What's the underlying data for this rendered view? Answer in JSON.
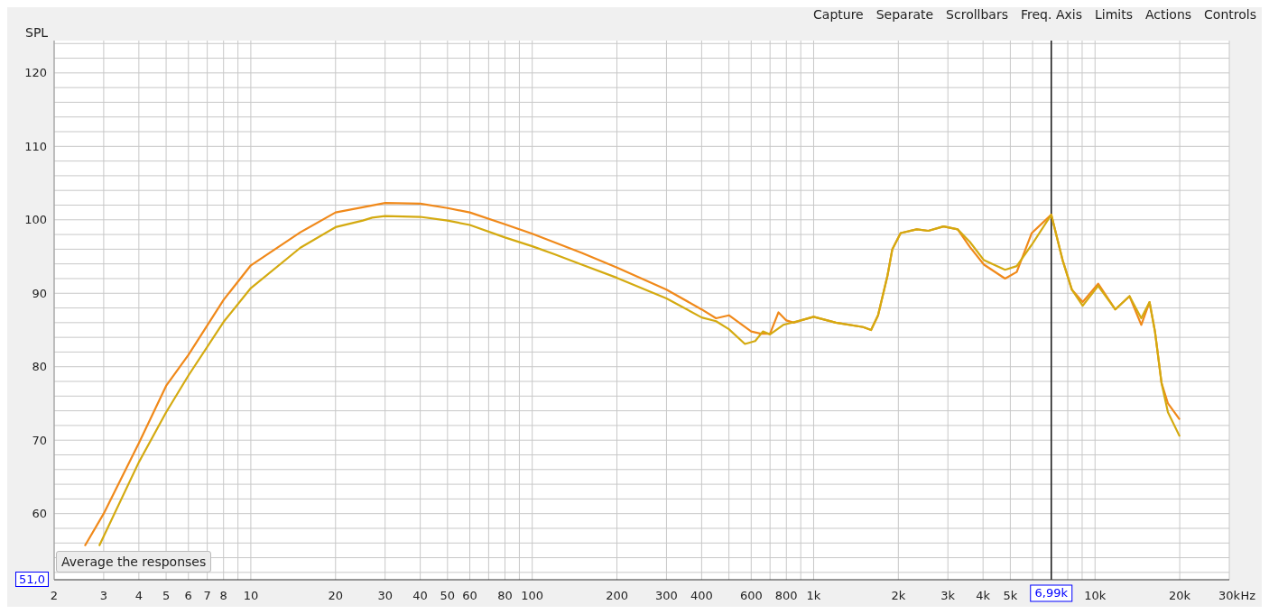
{
  "chart_data": {
    "type": "line",
    "ylabel": "SPL",
    "xlabel": "Hz",
    "annotations": [
      "Capture",
      "Separate",
      "Scrollbars",
      "Freq. Axis",
      "Limits",
      "Actions",
      "Controls",
      "Average the responses",
      "51,0"
    ],
    "xlim": [
      2,
      30000
    ],
    "ylim": [
      51,
      124.4
    ],
    "log": "x",
    "grid": true,
    "line_style": "solid",
    "marker": "none",
    "xticks": [
      2,
      3,
      4,
      5,
      6,
      7,
      8,
      {
        "value": 9,
        "label": null
      },
      10,
      20,
      30,
      40,
      50,
      60,
      {
        "value": 70,
        "label": null
      },
      80,
      {
        "value": 90,
        "label": null
      },
      100,
      200,
      300,
      400,
      {
        "value": 500,
        "label": null
      },
      600,
      {
        "value": 700,
        "label": null
      },
      800,
      {
        "value": 900,
        "label": null
      },
      {
        "value": 1000,
        "label": "1k"
      },
      {
        "value": 2000,
        "label": "2k"
      },
      {
        "value": 3000,
        "label": "3k"
      },
      {
        "value": 4000,
        "label": "4k"
      },
      {
        "value": 5000,
        "label": "5k"
      },
      {
        "value": 6000,
        "label": null
      },
      {
        "value": 7000,
        "label": null
      },
      {
        "value": 8000,
        "label": null
      },
      {
        "value": 9000,
        "label": null
      },
      {
        "value": 10000,
        "label": "10k"
      },
      {
        "value": 20000,
        "label": "20k"
      },
      {
        "value": 30000,
        "label": "30k"
      }
    ],
    "yticks": [
      {
        "value": 52,
        "label": null
      },
      {
        "value": 54,
        "label": null
      },
      {
        "value": 56,
        "label": null
      },
      {
        "value": 58,
        "label": null
      },
      60,
      {
        "value": 62,
        "label": null
      },
      {
        "value": 64,
        "label": null
      },
      {
        "value": 66,
        "label": null
      },
      {
        "value": 68,
        "label": null
      },
      70,
      {
        "value": 72,
        "label": null
      },
      {
        "value": 74,
        "label": null
      },
      {
        "value": 76,
        "label": null
      },
      {
        "value": 78,
        "label": null
      },
      80,
      {
        "value": 82,
        "label": null
      },
      {
        "value": 84,
        "label": null
      },
      {
        "value": 86,
        "label": null
      },
      {
        "value": 88,
        "label": null
      },
      90,
      {
        "value": 92,
        "label": null
      },
      {
        "value": 94,
        "label": null
      },
      {
        "value": 96,
        "label": null
      },
      {
        "value": 98,
        "label": null
      },
      100,
      {
        "value": 102,
        "label": null
      },
      {
        "value": 104,
        "label": null
      },
      {
        "value": 106,
        "label": null
      },
      {
        "value": 108,
        "label": null
      },
      110,
      {
        "value": 112,
        "label": null
      },
      {
        "value": 114,
        "label": null
      },
      {
        "value": 116,
        "label": null
      },
      {
        "value": 118,
        "label": null
      },
      120,
      {
        "value": 122,
        "label": null
      },
      {
        "value": 124,
        "label": null
      }
    ],
    "ref_lines": [
      {
        "axis": "x",
        "value": 6990,
        "label": "6,99k",
        "color": "#1a1a1a"
      }
    ],
    "series": [
      {
        "color": "#f0891a",
        "x": [
          2.57,
          3,
          4,
          5,
          6,
          8,
          10,
          15,
          20,
          30,
          40,
          50,
          60,
          80,
          100,
          150,
          200,
          300,
          400,
          450,
          500,
          600,
          650,
          700,
          750,
          800,
          850,
          900,
          1000,
          1200,
          1500,
          1600,
          1694,
          1830,
          1904,
          2038,
          2325,
          2556,
          2895,
          3250,
          3590,
          4030,
          4790,
          5270,
          5960,
          6990,
          7670,
          8270,
          9040,
          10260,
          11800,
          13260,
          14600,
          15620,
          16330,
          17230,
          18160,
          20000
        ],
        "values": [
          55.6,
          60,
          69.6,
          77.4,
          81.6,
          89.1,
          93.8,
          98.3,
          101.0,
          102.3,
          102.2,
          101.6,
          101.0,
          99.4,
          98.1,
          95.5,
          93.5,
          90.5,
          87.8,
          86.6,
          87.0,
          84.8,
          84.5,
          84.5,
          87.4,
          86.3,
          86.0,
          86.3,
          86.8,
          86.0,
          85.4,
          85.0,
          87.0,
          92.4,
          96.0,
          98.2,
          98.7,
          98.5,
          99.1,
          98.7,
          96.3,
          93.9,
          92.0,
          92.9,
          98.2,
          100.7,
          94.5,
          90.5,
          88.8,
          91.3,
          87.8,
          89.6,
          85.7,
          88.8,
          84.8,
          77.8,
          75.0,
          72.8
        ]
      },
      {
        "color": "#d4aa10",
        "x": [
          2.89,
          4,
          5,
          6,
          8,
          10,
          15,
          20,
          25,
          27,
          30,
          40,
          50,
          60,
          80,
          100,
          120,
          150,
          200,
          300,
          400,
          450,
          500,
          570,
          620,
          660,
          700,
          780,
          900,
          1000,
          1200,
          1500,
          1600,
          1694,
          1830,
          1904,
          2038,
          2325,
          2556,
          2895,
          3250,
          3590,
          4030,
          4790,
          5270,
          5960,
          6990,
          7670,
          8270,
          9040,
          10260,
          11800,
          13260,
          14600,
          15620,
          16330,
          17230,
          18160,
          20000
        ],
        "values": [
          55.6,
          67.0,
          73.8,
          78.8,
          86.1,
          90.7,
          96.2,
          99.0,
          99.9,
          100.3,
          100.5,
          100.4,
          99.9,
          99.3,
          97.6,
          96.4,
          95.3,
          93.9,
          92.1,
          89.3,
          86.7,
          86.2,
          85.1,
          83.1,
          83.5,
          84.8,
          84.4,
          85.7,
          86.3,
          86.8,
          86.0,
          85.4,
          85.0,
          87.0,
          92.4,
          96.0,
          98.2,
          98.7,
          98.5,
          99.1,
          98.7,
          97.0,
          94.5,
          93.2,
          93.7,
          96.6,
          100.7,
          94.5,
          90.5,
          88.3,
          91.0,
          87.8,
          89.6,
          86.6,
          88.8,
          84.8,
          77.8,
          73.8,
          70.5
        ]
      }
    ]
  }
}
